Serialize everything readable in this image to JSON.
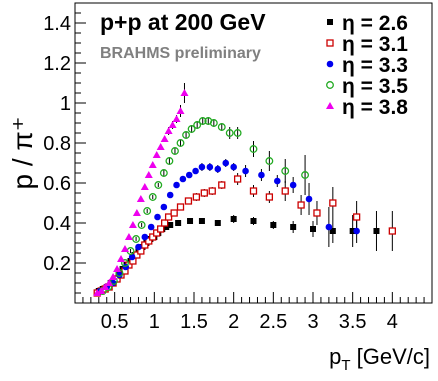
{
  "chart_data": {
    "type": "scatter",
    "title": "p+p at 200 GeV",
    "subtitle": "BRAHMS preliminary",
    "xlabel": "p_T [GeV/c]",
    "ylabel": "p / π⁺",
    "xlim": [
      0.0,
      4.5
    ],
    "ylim": [
      0.0,
      1.5
    ],
    "x_ticks": [
      "0.5",
      "1",
      "1.5",
      "2",
      "2.5",
      "3",
      "3.5",
      "4"
    ],
    "y_ticks": [
      "0.2",
      "0.4",
      "0.6",
      "0.8",
      "1",
      "1.2",
      "1.4"
    ],
    "grid": false,
    "legend_position": "top-right",
    "series": [
      {
        "name": "η = 2.6",
        "marker": "filled-square",
        "color": "#000000",
        "x": [
          0.3,
          0.35,
          0.4,
          0.45,
          0.5,
          0.55,
          0.6,
          0.65,
          0.7,
          0.75,
          0.8,
          0.85,
          0.9,
          0.95,
          1.0,
          1.05,
          1.1,
          1.15,
          1.2,
          1.3,
          1.45,
          1.6,
          1.8,
          2.0,
          2.25,
          2.5,
          2.75,
          3.0,
          3.25,
          3.5,
          3.8
        ],
        "y": [
          0.06,
          0.07,
          0.08,
          0.1,
          0.12,
          0.14,
          0.17,
          0.19,
          0.21,
          0.24,
          0.26,
          0.28,
          0.3,
          0.32,
          0.33,
          0.35,
          0.37,
          0.38,
          0.39,
          0.4,
          0.41,
          0.41,
          0.4,
          0.42,
          0.41,
          0.39,
          0.38,
          0.37,
          0.36,
          0.36,
          0.36
        ],
        "err": [
          0.005,
          0.005,
          0.005,
          0.005,
          0.005,
          0.005,
          0.005,
          0.005,
          0.005,
          0.01,
          0.01,
          0.01,
          0.01,
          0.01,
          0.01,
          0.01,
          0.01,
          0.015,
          0.015,
          0.015,
          0.015,
          0.015,
          0.015,
          0.02,
          0.02,
          0.02,
          0.03,
          0.04,
          0.06,
          0.08,
          0.1
        ]
      },
      {
        "name": "η = 3.1",
        "marker": "open-square",
        "color": "#cc0000",
        "x": [
          0.28,
          0.33,
          0.38,
          0.43,
          0.48,
          0.53,
          0.58,
          0.63,
          0.68,
          0.73,
          0.78,
          0.83,
          0.88,
          0.93,
          0.98,
          1.03,
          1.08,
          1.13,
          1.18,
          1.25,
          1.33,
          1.43,
          1.53,
          1.63,
          1.73,
          1.85,
          2.05,
          2.25,
          2.45,
          2.65,
          2.85,
          3.05,
          3.25,
          3.55,
          4.0
        ],
        "y": [
          0.05,
          0.06,
          0.07,
          0.08,
          0.1,
          0.12,
          0.14,
          0.16,
          0.19,
          0.21,
          0.24,
          0.26,
          0.29,
          0.31,
          0.33,
          0.35,
          0.37,
          0.4,
          0.43,
          0.45,
          0.48,
          0.51,
          0.53,
          0.55,
          0.56,
          0.59,
          0.62,
          0.56,
          0.53,
          0.56,
          0.49,
          0.45,
          0.5,
          0.43,
          0.36
        ],
        "err": [
          0.005,
          0.005,
          0.005,
          0.005,
          0.005,
          0.005,
          0.005,
          0.005,
          0.005,
          0.01,
          0.01,
          0.01,
          0.01,
          0.01,
          0.01,
          0.01,
          0.01,
          0.015,
          0.015,
          0.015,
          0.015,
          0.015,
          0.02,
          0.02,
          0.02,
          0.02,
          0.03,
          0.03,
          0.03,
          0.05,
          0.05,
          0.06,
          0.08,
          0.08,
          0.1
        ]
      },
      {
        "name": "η = 3.3",
        "marker": "filled-circle",
        "color": "#0000ee",
        "x": [
          0.32,
          0.4,
          0.48,
          0.56,
          0.64,
          0.72,
          0.8,
          0.88,
          0.96,
          1.04,
          1.12,
          1.2,
          1.28,
          1.36,
          1.44,
          1.52,
          1.6,
          1.7,
          1.8,
          1.9,
          2.0,
          2.15,
          2.35,
          2.55,
          2.75,
          2.95,
          3.2,
          3.55
        ],
        "y": [
          0.06,
          0.08,
          0.1,
          0.14,
          0.18,
          0.23,
          0.28,
          0.33,
          0.38,
          0.43,
          0.48,
          0.54,
          0.59,
          0.62,
          0.64,
          0.66,
          0.68,
          0.68,
          0.67,
          0.7,
          0.68,
          0.66,
          0.64,
          0.61,
          0.59,
          0.52,
          0.38,
          0.36
        ],
        "err": [
          0.005,
          0.005,
          0.005,
          0.005,
          0.005,
          0.005,
          0.01,
          0.01,
          0.01,
          0.01,
          0.01,
          0.015,
          0.015,
          0.015,
          0.015,
          0.015,
          0.02,
          0.02,
          0.02,
          0.02,
          0.02,
          0.03,
          0.03,
          0.03,
          0.04,
          0.08,
          0.1,
          0.06
        ]
      },
      {
        "name": "η = 3.5",
        "marker": "open-circle",
        "color": "#22aa22",
        "x": [
          0.35,
          0.42,
          0.49,
          0.56,
          0.63,
          0.7,
          0.77,
          0.84,
          0.91,
          0.98,
          1.05,
          1.12,
          1.19,
          1.26,
          1.33,
          1.4,
          1.47,
          1.54,
          1.61,
          1.68,
          1.75,
          1.85,
          1.95,
          2.05,
          2.25,
          2.45,
          2.65,
          2.9
        ],
        "y": [
          0.06,
          0.08,
          0.11,
          0.15,
          0.2,
          0.26,
          0.32,
          0.39,
          0.46,
          0.53,
          0.59,
          0.65,
          0.71,
          0.76,
          0.8,
          0.84,
          0.87,
          0.89,
          0.91,
          0.91,
          0.9,
          0.88,
          0.85,
          0.85,
          0.77,
          0.71,
          0.66,
          0.64
        ],
        "err": [
          0.005,
          0.005,
          0.005,
          0.005,
          0.005,
          0.01,
          0.01,
          0.01,
          0.01,
          0.01,
          0.01,
          0.015,
          0.015,
          0.015,
          0.015,
          0.015,
          0.02,
          0.02,
          0.02,
          0.02,
          0.02,
          0.02,
          0.03,
          0.03,
          0.04,
          0.05,
          0.06,
          0.1
        ]
      },
      {
        "name": "η = 3.8",
        "marker": "filled-triangle",
        "color": "#ee00ee",
        "x": [
          0.28,
          0.33,
          0.38,
          0.43,
          0.48,
          0.53,
          0.58,
          0.63,
          0.68,
          0.73,
          0.78,
          0.83,
          0.88,
          0.93,
          0.98,
          1.03,
          1.08,
          1.13,
          1.18,
          1.23,
          1.28,
          1.33,
          1.38
        ],
        "y": [
          0.05,
          0.06,
          0.08,
          0.1,
          0.13,
          0.17,
          0.22,
          0.27,
          0.33,
          0.39,
          0.45,
          0.52,
          0.58,
          0.64,
          0.69,
          0.74,
          0.78,
          0.82,
          0.86,
          0.89,
          0.92,
          0.96,
          1.05
        ],
        "err": [
          0.005,
          0.005,
          0.005,
          0.005,
          0.005,
          0.005,
          0.005,
          0.01,
          0.01,
          0.01,
          0.01,
          0.01,
          0.01,
          0.01,
          0.015,
          0.015,
          0.015,
          0.015,
          0.02,
          0.02,
          0.02,
          0.03,
          0.05
        ]
      }
    ]
  }
}
